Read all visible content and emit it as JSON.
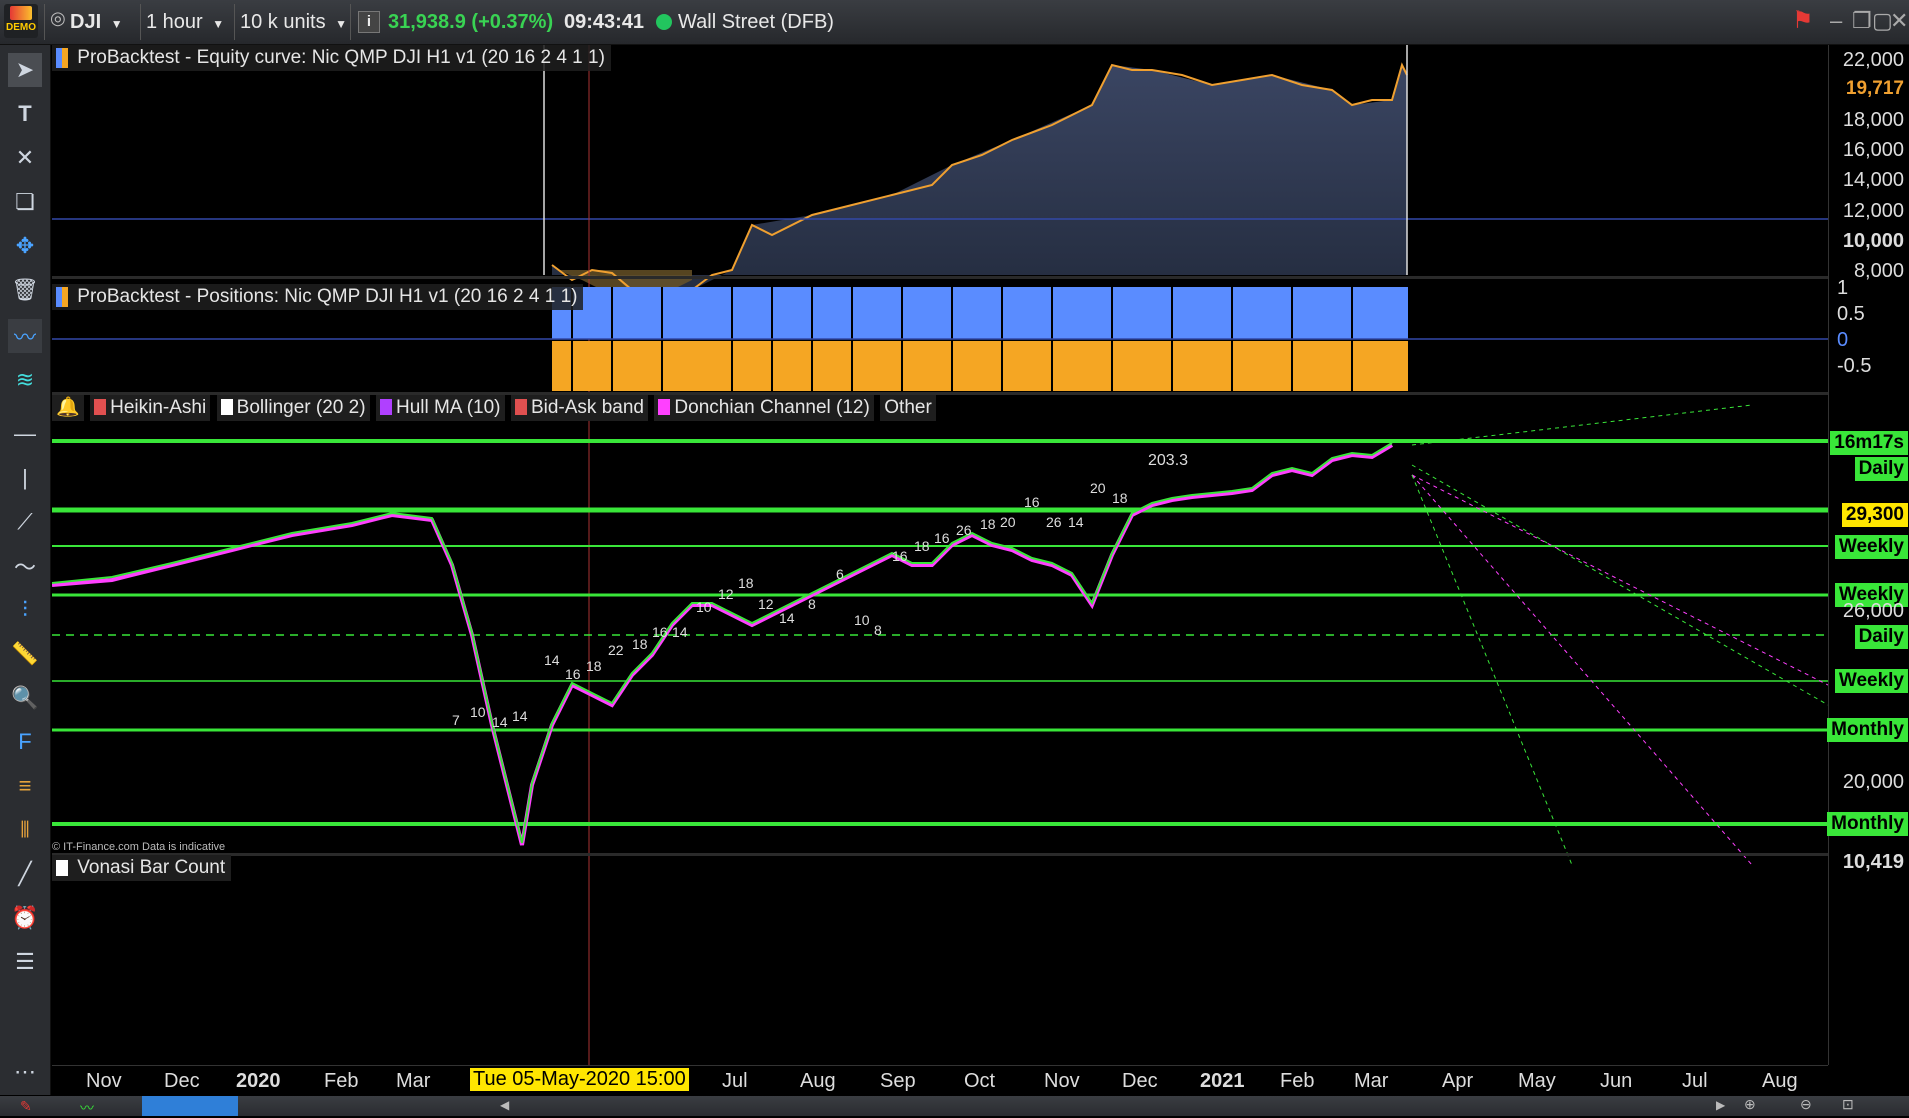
{
  "topbar": {
    "demo_label": "DEMO",
    "symbol": "DJI",
    "timeframe": "1 hour",
    "units": "10 k units",
    "info_icon": "info-icon",
    "price": "31,938.9 (+0.37%)",
    "time": "09:43:41",
    "market": "Wall Street (DFB)",
    "colors": {
      "price_green": "#39d353",
      "status_dot": "#22c55e"
    }
  },
  "panels": {
    "equity_title": "ProBacktest - Equity curve: Nic QMP DJI H1 v1 (20 16 2 4 1 1)",
    "positions_title": "ProBacktest - Positions: Nic QMP DJI H1 v1 (20 16 2 4 1 1)",
    "indicators": [
      {
        "label": "Heikin-Ashi",
        "color": "#e05050"
      },
      {
        "label": "Bollinger (20 2)",
        "color": "#ffffff"
      },
      {
        "label": "Hull MA (10)",
        "color": "#b040ff"
      },
      {
        "label": "Bid-Ask band",
        "color": "#e05050"
      },
      {
        "label": "Donchian Channel (12)",
        "color": "#ff40ff"
      }
    ],
    "other_label": "Other",
    "bar_count_label": "Vonasi Bar Count",
    "credit": "© IT-Finance.com  Data is indicative"
  },
  "equity_axis": [
    "22,000",
    "18,000",
    "16,000",
    "14,000",
    "12,000",
    "10,000",
    "8,000"
  ],
  "equity_last": "19,717",
  "positions_axis": [
    "1",
    "0.5",
    "0",
    "-0.5"
  ],
  "price_axis": [
    "26,000",
    "20,000",
    "10,419"
  ],
  "price_tags": [
    {
      "label": "16m17s",
      "color": "#39e639"
    },
    {
      "label": "Daily",
      "color": "#39e639"
    },
    {
      "label": "29,300",
      "color": "#ffe600"
    },
    {
      "label": "Weekly",
      "color": "#39e639"
    },
    {
      "label": "Weekly",
      "color": "#39e639"
    },
    {
      "label": "Daily",
      "color": "#39e639"
    },
    {
      "label": "Weekly",
      "color": "#39e639"
    },
    {
      "label": "Monthly",
      "color": "#39e639"
    },
    {
      "label": "Monthly",
      "color": "#39e639"
    }
  ],
  "time_axis": {
    "months": [
      "Nov",
      "Dec",
      "2020",
      "Feb",
      "Mar",
      "Jul",
      "Aug",
      "Sep",
      "Oct",
      "Nov",
      "Dec",
      "2021",
      "Feb",
      "Mar",
      "Apr",
      "May",
      "Jun",
      "Jul",
      "Aug"
    ],
    "cursor_label": "Tue 05-May-2020 15:00"
  },
  "chart_annotations": [
    "7",
    "10",
    "14",
    "14",
    "14",
    "16",
    "18",
    "22",
    "18",
    "16",
    "14",
    "10",
    "12",
    "18",
    "12",
    "14",
    "8",
    "6",
    "10",
    "8",
    "16",
    "18",
    "16",
    "26",
    "18",
    "20",
    "16",
    "26",
    "14",
    "20",
    "18",
    "203.3"
  ]
}
